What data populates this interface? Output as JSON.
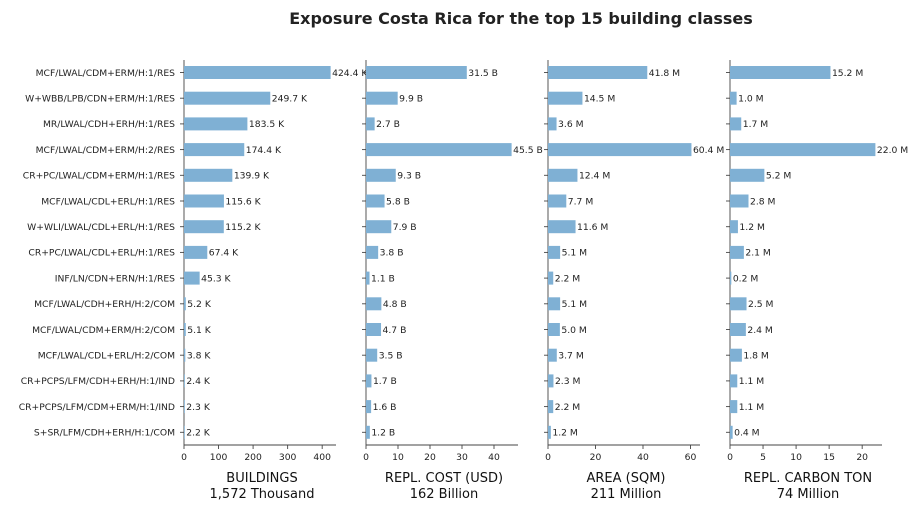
{
  "chart_data": {
    "type": "bar",
    "title": "Exposure Costa Rica for the top 15 building classes",
    "categories": [
      "MCF/LWAL/CDM+ERM/H:1/RES",
      "W+WBB/LPB/CDN+ERM/H:1/RES",
      "MR/LWAL/CDH+ERH/H:1/RES",
      "MCF/LWAL/CDM+ERM/H:2/RES",
      "CR+PC/LWAL/CDM+ERM/H:1/RES",
      "MCF/LWAL/CDL+ERL/H:1/RES",
      "W+WLI/LWAL/CDL+ERL/H:1/RES",
      "CR+PC/LWAL/CDL+ERL/H:1/RES",
      "INF/LN/CDN+ERN/H:1/RES",
      "MCF/LWAL/CDH+ERH/H:2/COM",
      "MCF/LWAL/CDM+ERM/H:2/COM",
      "MCF/LWAL/CDL+ERL/H:2/COM",
      "CR+PCPS/LFM/CDH+ERH/H:1/IND",
      "CR+PCPS/LFM/CDM+ERM/H:1/IND",
      "S+SR/LFM/CDH+ERH/H:1/COM"
    ],
    "panels": [
      {
        "xlabel": "BUILDINGS",
        "total": "1,572 Thousand",
        "xlim": [
          0,
          440
        ],
        "ticks": [
          0,
          100,
          200,
          300,
          400
        ],
        "values": [
          424.4,
          249.7,
          183.5,
          174.4,
          139.9,
          115.6,
          115.2,
          67.4,
          45.3,
          5.2,
          5.1,
          3.8,
          2.4,
          2.3,
          2.2
        ],
        "labels": [
          "424.4 K",
          "249.7 K",
          "183.5 K",
          "174.4 K",
          "139.9 K",
          "115.6 K",
          "115.2 K",
          "67.4 K",
          "45.3 K",
          "5.2 K",
          "5.1 K",
          "3.8 K",
          "2.4 K",
          "2.3 K",
          "2.2 K"
        ]
      },
      {
        "xlabel": "REPL. COST (USD)",
        "total": "162 Billion",
        "xlim": [
          0,
          47.5
        ],
        "ticks": [
          0,
          10,
          20,
          30,
          40
        ],
        "values": [
          31.5,
          9.9,
          2.7,
          45.5,
          9.3,
          5.8,
          7.9,
          3.8,
          1.1,
          4.8,
          4.7,
          3.5,
          1.7,
          1.6,
          1.2
        ],
        "labels": [
          "31.5 B",
          "9.9 B",
          "2.7 B",
          "45.5 B",
          "9.3 B",
          "5.8 B",
          "7.9 B",
          "3.8 B",
          "1.1 B",
          "4.8 B",
          "4.7 B",
          "3.5 B",
          "1.7 B",
          "1.6 B",
          "1.2 B"
        ]
      },
      {
        "xlabel": "AREA (SQM)",
        "total": "211 Million",
        "xlim": [
          0,
          64
        ],
        "ticks": [
          0,
          20,
          40,
          60
        ],
        "values": [
          41.8,
          14.5,
          3.6,
          60.4,
          12.4,
          7.7,
          11.6,
          5.1,
          2.2,
          5.1,
          5.0,
          3.7,
          2.3,
          2.2,
          1.2
        ],
        "labels": [
          "41.8 M",
          "14.5 M",
          "3.6 M",
          "60.4 M",
          "12.4 M",
          "7.7 M",
          "11.6 M",
          "5.1 M",
          "2.2 M",
          "5.1 M",
          "5.0 M",
          "3.7 M",
          "2.3 M",
          "2.2 M",
          "1.2 M"
        ]
      },
      {
        "xlabel": "REPL. CARBON TON",
        "total": "74 Million",
        "xlim": [
          0,
          23
        ],
        "ticks": [
          0,
          5,
          10,
          15,
          20
        ],
        "values": [
          15.2,
          1.0,
          1.7,
          22.0,
          5.2,
          2.8,
          1.2,
          2.1,
          0.2,
          2.5,
          2.4,
          1.8,
          1.1,
          1.1,
          0.4
        ],
        "labels": [
          "15.2 M",
          "1.0 M",
          "1.7 M",
          "22.0 M",
          "5.2 M",
          "2.8 M",
          "1.2 M",
          "2.1 M",
          "0.2 M",
          "2.5 M",
          "2.4 M",
          "1.8 M",
          "1.1 M",
          "1.1 M",
          "0.4 M"
        ]
      }
    ],
    "bar_color": "#7fb0d4",
    "grid": false,
    "legend": "none"
  }
}
